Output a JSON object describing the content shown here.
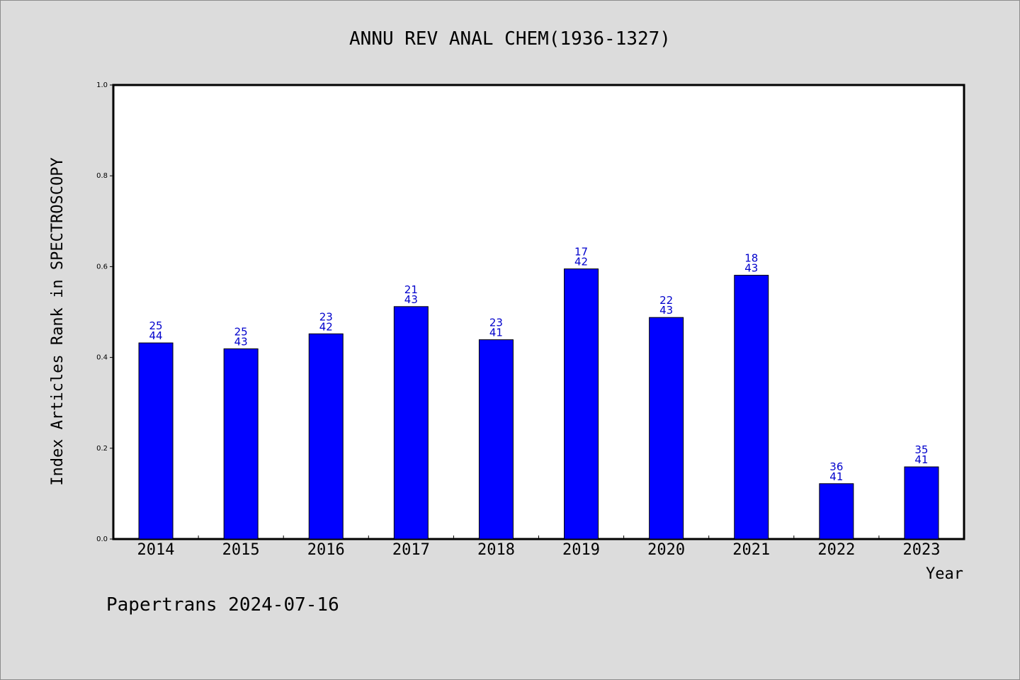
{
  "chart_data": {
    "type": "bar",
    "title": "ANNU REV ANAL CHEM(1936-1327)",
    "xlabel": "Year",
    "ylabel": "Index Articles Rank in SPECTROSCOPY",
    "ylim": [
      0,
      1.0
    ],
    "yticks": [
      "0.0",
      "0.2",
      "0.4",
      "0.6",
      "0.8",
      "1.0"
    ],
    "categories": [
      "2014",
      "2015",
      "2016",
      "2017",
      "2018",
      "2019",
      "2020",
      "2021",
      "2022",
      "2023"
    ],
    "values": [
      0.432,
      0.419,
      0.452,
      0.512,
      0.439,
      0.595,
      0.488,
      0.581,
      0.122,
      0.159
    ],
    "rank": [
      "25",
      "25",
      "23",
      "21",
      "23",
      "17",
      "22",
      "18",
      "36",
      "35"
    ],
    "total": [
      "44",
      "43",
      "42",
      "43",
      "41",
      "42",
      "43",
      "43",
      "41",
      "41"
    ],
    "bar_color": "#0000ff",
    "label_color": "#0000cc",
    "grid": false,
    "legend": "none"
  },
  "footer": "Papertrans 2024-07-16"
}
